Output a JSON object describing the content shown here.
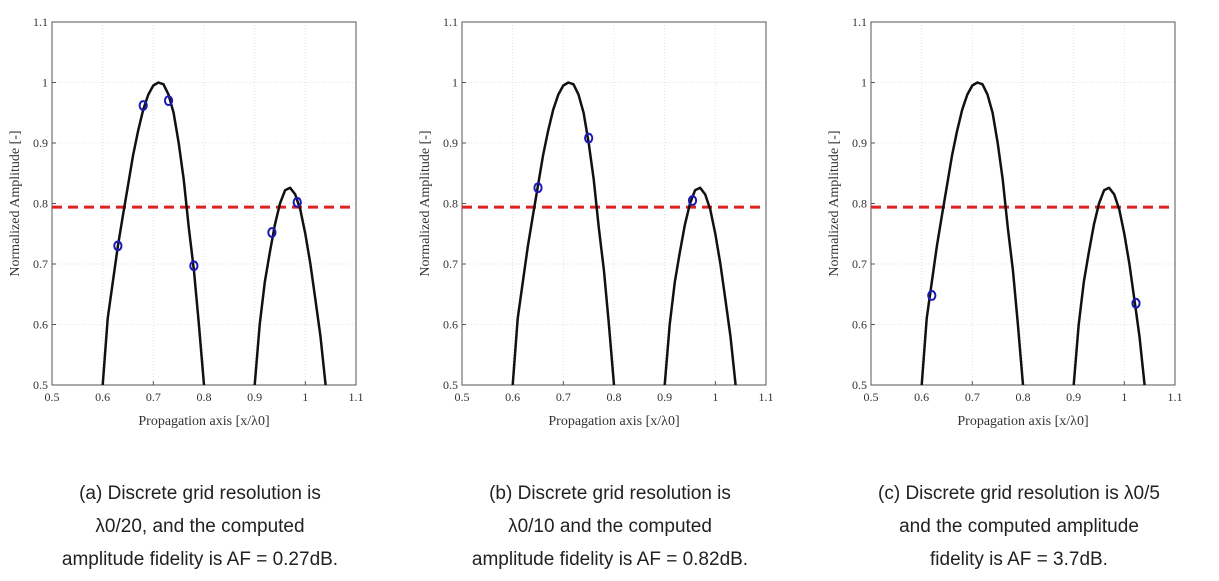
{
  "colors": {
    "curve": "#111111",
    "threshold": "#dd2222",
    "points": "#1a1ab8",
    "axis": "#555555"
  },
  "chart_data": [
    {
      "type": "line",
      "xlabel": "Propagation axis [x/λ0]",
      "ylabel": "Normalized Amplitude [-]",
      "xlim": [
        0.5,
        1.1
      ],
      "ylim": [
        0.5,
        1.1
      ],
      "xticks": [
        "0.5",
        "0.6",
        "0.7",
        "0.8",
        "0.9",
        "1",
        "1.1"
      ],
      "yticks": [
        "0.5",
        "0.6",
        "0.7",
        "0.8",
        "0.9",
        "1",
        "1.1"
      ],
      "threshold": 0.794,
      "curve": [
        [
          0.6,
          0.5
        ],
        [
          0.61,
          0.61
        ],
        [
          0.62,
          0.67
        ],
        [
          0.63,
          0.73
        ],
        [
          0.64,
          0.78
        ],
        [
          0.65,
          0.83
        ],
        [
          0.66,
          0.88
        ],
        [
          0.67,
          0.92
        ],
        [
          0.68,
          0.955
        ],
        [
          0.69,
          0.98
        ],
        [
          0.7,
          0.995
        ],
        [
          0.71,
          1.0
        ],
        [
          0.72,
          0.997
        ],
        [
          0.73,
          0.98
        ],
        [
          0.74,
          0.95
        ],
        [
          0.75,
          0.9
        ],
        [
          0.76,
          0.84
        ],
        [
          0.77,
          0.76
        ],
        [
          0.78,
          0.69
        ],
        [
          0.79,
          0.6
        ],
        [
          0.8,
          0.5
        ]
      ],
      "curve2": [
        [
          0.9,
          0.5
        ],
        [
          0.91,
          0.6
        ],
        [
          0.92,
          0.67
        ],
        [
          0.93,
          0.72
        ],
        [
          0.94,
          0.765
        ],
        [
          0.95,
          0.8
        ],
        [
          0.96,
          0.822
        ],
        [
          0.97,
          0.826
        ],
        [
          0.98,
          0.815
        ],
        [
          0.99,
          0.79
        ],
        [
          1.0,
          0.75
        ],
        [
          1.01,
          0.7
        ],
        [
          1.02,
          0.64
        ],
        [
          1.03,
          0.58
        ],
        [
          1.04,
          0.5
        ]
      ],
      "points": [
        [
          0.63,
          0.73
        ],
        [
          0.68,
          0.962
        ],
        [
          0.73,
          0.97
        ],
        [
          0.78,
          0.697
        ],
        [
          0.934,
          0.752
        ],
        [
          0.984,
          0.802
        ]
      ],
      "caption": [
        "(a) Discrete grid resolution is",
        "λ0/20, and the computed",
        "amplitude fidelity is AF = 0.27dB."
      ]
    },
    {
      "type": "line",
      "xlabel": "Propagation axis [x/λ0]",
      "ylabel": "Normalized Amplitude [-]",
      "xlim": [
        0.5,
        1.1
      ],
      "ylim": [
        0.5,
        1.1
      ],
      "xticks": [
        "0.5",
        "0.6",
        "0.7",
        "0.8",
        "0.9",
        "1",
        "1.1"
      ],
      "yticks": [
        "0.5",
        "0.6",
        "0.7",
        "0.8",
        "0.9",
        "1",
        "1.1"
      ],
      "threshold": 0.794,
      "curve": [
        [
          0.6,
          0.5
        ],
        [
          0.61,
          0.61
        ],
        [
          0.62,
          0.67
        ],
        [
          0.63,
          0.73
        ],
        [
          0.64,
          0.78
        ],
        [
          0.65,
          0.83
        ],
        [
          0.66,
          0.88
        ],
        [
          0.67,
          0.92
        ],
        [
          0.68,
          0.955
        ],
        [
          0.69,
          0.98
        ],
        [
          0.7,
          0.995
        ],
        [
          0.71,
          1.0
        ],
        [
          0.72,
          0.997
        ],
        [
          0.73,
          0.98
        ],
        [
          0.74,
          0.95
        ],
        [
          0.75,
          0.9
        ],
        [
          0.76,
          0.84
        ],
        [
          0.77,
          0.76
        ],
        [
          0.78,
          0.69
        ],
        [
          0.79,
          0.6
        ],
        [
          0.8,
          0.5
        ]
      ],
      "curve2": [
        [
          0.9,
          0.5
        ],
        [
          0.91,
          0.6
        ],
        [
          0.92,
          0.67
        ],
        [
          0.93,
          0.72
        ],
        [
          0.94,
          0.765
        ],
        [
          0.95,
          0.8
        ],
        [
          0.96,
          0.822
        ],
        [
          0.97,
          0.826
        ],
        [
          0.98,
          0.815
        ],
        [
          0.99,
          0.79
        ],
        [
          1.0,
          0.75
        ],
        [
          1.01,
          0.7
        ],
        [
          1.02,
          0.64
        ],
        [
          1.03,
          0.58
        ],
        [
          1.04,
          0.5
        ]
      ],
      "points": [
        [
          0.65,
          0.826
        ],
        [
          0.75,
          0.908
        ],
        [
          0.955,
          0.805
        ]
      ],
      "caption": [
        "(b) Discrete grid resolution is",
        "λ0/10 and the computed",
        "amplitude fidelity is AF = 0.82dB."
      ]
    },
    {
      "type": "line",
      "xlabel": "Propagation axis [x/λ0]",
      "ylabel": "Normalized Amplitude [-]",
      "xlim": [
        0.5,
        1.1
      ],
      "ylim": [
        0.5,
        1.1
      ],
      "xticks": [
        "0.5",
        "0.6",
        "0.7",
        "0.8",
        "0.9",
        "1",
        "1.1"
      ],
      "yticks": [
        "0.5",
        "0.6",
        "0.7",
        "0.8",
        "0.9",
        "1",
        "1.1"
      ],
      "threshold": 0.794,
      "curve": [
        [
          0.6,
          0.5
        ],
        [
          0.61,
          0.61
        ],
        [
          0.62,
          0.67
        ],
        [
          0.63,
          0.73
        ],
        [
          0.64,
          0.78
        ],
        [
          0.65,
          0.83
        ],
        [
          0.66,
          0.88
        ],
        [
          0.67,
          0.92
        ],
        [
          0.68,
          0.955
        ],
        [
          0.69,
          0.98
        ],
        [
          0.7,
          0.995
        ],
        [
          0.71,
          1.0
        ],
        [
          0.72,
          0.997
        ],
        [
          0.73,
          0.98
        ],
        [
          0.74,
          0.95
        ],
        [
          0.75,
          0.9
        ],
        [
          0.76,
          0.84
        ],
        [
          0.77,
          0.76
        ],
        [
          0.78,
          0.69
        ],
        [
          0.79,
          0.6
        ],
        [
          0.8,
          0.5
        ]
      ],
      "curve2": [
        [
          0.9,
          0.5
        ],
        [
          0.91,
          0.6
        ],
        [
          0.92,
          0.67
        ],
        [
          0.93,
          0.72
        ],
        [
          0.94,
          0.765
        ],
        [
          0.95,
          0.8
        ],
        [
          0.96,
          0.822
        ],
        [
          0.97,
          0.826
        ],
        [
          0.98,
          0.815
        ],
        [
          0.99,
          0.79
        ],
        [
          1.0,
          0.75
        ],
        [
          1.01,
          0.7
        ],
        [
          1.02,
          0.64
        ],
        [
          1.03,
          0.58
        ],
        [
          1.04,
          0.5
        ]
      ],
      "points": [
        [
          0.62,
          0.648
        ],
        [
          1.023,
          0.635
        ]
      ],
      "caption": [
        "(c) Discrete grid resolution is λ0/5",
        "and the computed amplitude",
        "fidelity is AF = 3.7dB."
      ]
    }
  ]
}
